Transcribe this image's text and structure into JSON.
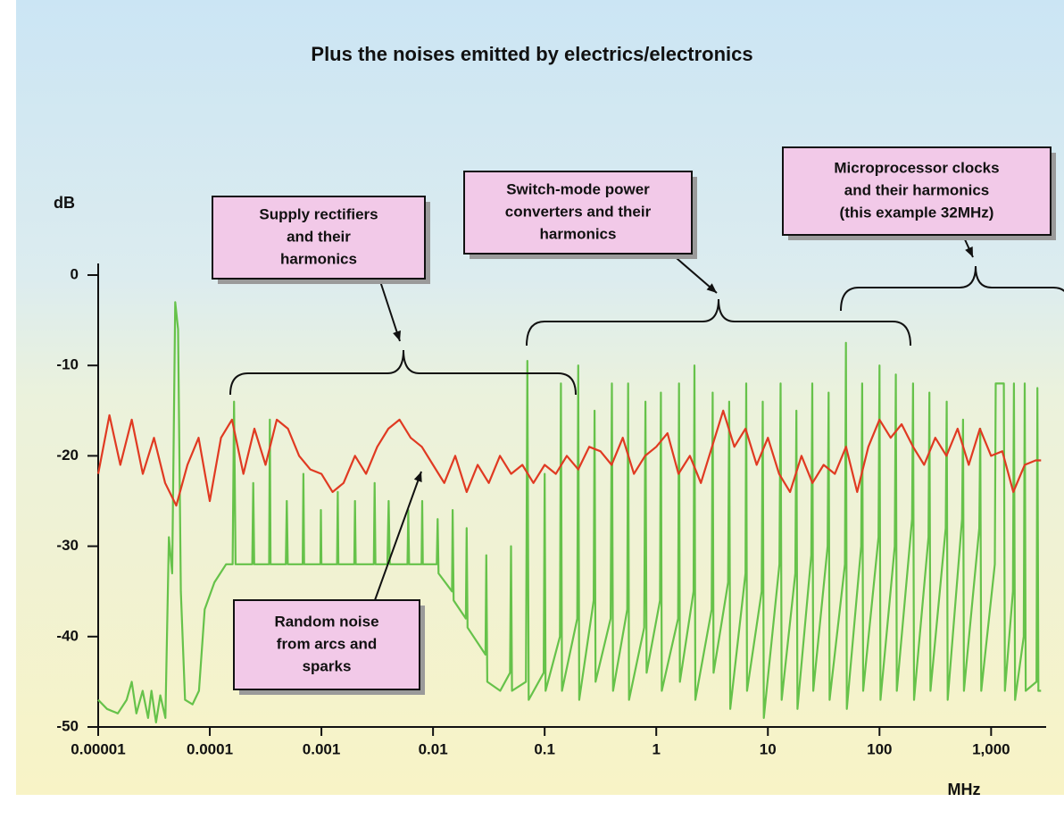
{
  "chart_data": {
    "type": "line",
    "title": "Plus the noises emitted by electrics/electronics",
    "ylabel": "dB",
    "xlabel": "MHz",
    "xscale": "log",
    "xlim": [
      1e-05,
      3000
    ],
    "ylim": [
      -50,
      0
    ],
    "xticks": [
      1e-05,
      0.0001,
      0.001,
      0.01,
      0.1,
      1,
      10,
      100,
      {
        "value": 1000,
        "label": "1,000"
      }
    ],
    "yticks": [
      0,
      -10,
      -20,
      -30,
      -40,
      -50
    ],
    "series": [
      {
        "color": "#66c24a",
        "x": [
          1e-05,
          1.2e-05,
          1.5e-05,
          1.8e-05,
          2e-05,
          2.2e-05,
          2.5e-05,
          2.8e-05,
          3e-05,
          3.3e-05,
          3.6e-05,
          4e-05,
          4.3e-05,
          4.6e-05,
          4.9e-05,
          5.2e-05,
          5.5e-05,
          6e-05,
          7e-05,
          8e-05,
          9e-05,
          0.00011,
          0.00014,
          0.00016,
          0.000165,
          0.00017,
          0.00024,
          0.000245,
          0.00025,
          0.00034,
          0.000345,
          0.00035,
          0.00048,
          0.00049,
          0.0005,
          0.00068,
          0.00069,
          0.0007,
          0.00098,
          0.00099,
          0.001,
          0.00138,
          0.0014,
          0.00142,
          0.00197,
          0.002,
          0.00203,
          0.00295,
          0.003,
          0.00305,
          0.0039,
          0.004,
          0.0041,
          0.0059,
          0.006,
          0.0061,
          0.0079,
          0.008,
          0.0081,
          0.0108,
          0.011,
          0.0112,
          0.0148,
          0.015,
          0.0153,
          0.0197,
          0.02,
          0.0204,
          0.0295,
          0.03,
          0.0306,
          0.04,
          0.049,
          0.05,
          0.051,
          0.068,
          0.07,
          0.072,
          0.098,
          0.1,
          0.102,
          0.137,
          0.14,
          0.143,
          0.196,
          0.2,
          0.204,
          0.275,
          0.28,
          0.286,
          0.39,
          0.4,
          0.41,
          0.55,
          0.56,
          0.57,
          0.78,
          0.8,
          0.82,
          1.08,
          1.1,
          1.12,
          1.57,
          1.6,
          1.63,
          2.16,
          2.2,
          2.24,
          3.14,
          3.2,
          3.26,
          4.4,
          4.5,
          4.6,
          6.3,
          6.4,
          6.5,
          8.8,
          9,
          9.2,
          12.7,
          13,
          13.3,
          17.6,
          18,
          18.4,
          24.5,
          25,
          25.5,
          34.3,
          35,
          35.7,
          49,
          50,
          51,
          68.6,
          70,
          71.4,
          98,
          100,
          102,
          137,
          140,
          143,
          196,
          200,
          204,
          275,
          280,
          286,
          392,
          400,
          408,
          549,
          560,
          571,
          784,
          800,
          816,
          1080,
          1100,
          1300,
          1330,
          1570,
          1600,
          1640,
          1960,
          2000,
          2040,
          2550,
          2600,
          2650,
          2800
        ],
        "values": [
          -47,
          -48,
          -48.5,
          -47,
          -45,
          -48.5,
          -46,
          -49,
          -46,
          -49.5,
          -46.5,
          -49,
          -29,
          -33,
          -3,
          -6,
          -35,
          -47,
          -47.5,
          -46,
          -37,
          -34,
          -32,
          -32,
          -14,
          -32,
          -32,
          -23,
          -32,
          -32,
          -16,
          -32,
          -32,
          -25,
          -32,
          -32,
          -22,
          -32,
          -32,
          -26,
          -32,
          -32,
          -24,
          -32,
          -32,
          -25,
          -32,
          -32,
          -23,
          -32,
          -32,
          -25,
          -32,
          -32,
          -26,
          -32,
          -32,
          -25,
          -32,
          -32,
          -27,
          -33,
          -35,
          -26,
          -36,
          -38,
          -28,
          -39,
          -42,
          -31,
          -45,
          -46,
          -44,
          -30,
          -46,
          -45,
          -9.5,
          -47,
          -44,
          -22,
          -46,
          -40,
          -12,
          -46,
          -38,
          -10,
          -47,
          -36,
          -15,
          -45,
          -38,
          -12,
          -46,
          -37,
          -12,
          -47,
          -39,
          -14,
          -44,
          -36,
          -13,
          -46,
          -38,
          -12,
          -45,
          -35,
          -10,
          -47,
          -37,
          -13,
          -44,
          -34,
          -14,
          -48,
          -33,
          -12,
          -46,
          -35,
          -14,
          -49,
          -32,
          -12,
          -47,
          -33,
          -15,
          -48,
          -31,
          -12,
          -46,
          -30,
          -13,
          -47,
          -32,
          -7.5,
          -48,
          -30,
          -12,
          -46,
          -29,
          -10,
          -47,
          -30,
          -11,
          -46,
          -27,
          -12,
          -47,
          -29,
          -13,
          -46,
          -28,
          -14,
          -47,
          -27,
          -16,
          -46,
          -28,
          -17,
          -46,
          -32,
          -12,
          -12,
          -46,
          -35,
          -12,
          -47,
          -40,
          -12,
          -46,
          -45,
          -12.5,
          -46,
          -46
        ]
      },
      {
        "color": "#e03a22",
        "x": [
          1e-05,
          1.26e-05,
          1.58e-05,
          2e-05,
          2.51e-05,
          3.16e-05,
          3.98e-05,
          5.01e-05,
          6.31e-05,
          7.94e-05,
          0.0001,
          0.000126,
          0.000158,
          0.0002,
          0.000251,
          0.000316,
          0.000398,
          0.000501,
          0.000631,
          0.000794,
          0.001,
          0.00126,
          0.00158,
          0.002,
          0.00251,
          0.00316,
          0.00398,
          0.00501,
          0.00631,
          0.00794,
          0.01,
          0.0126,
          0.0158,
          0.02,
          0.0251,
          0.0316,
          0.0398,
          0.0501,
          0.0631,
          0.0794,
          0.1,
          0.126,
          0.158,
          0.2,
          0.251,
          0.316,
          0.398,
          0.501,
          0.631,
          0.794,
          1,
          1.26,
          1.58,
          2,
          2.51,
          3.16,
          3.98,
          5.01,
          6.31,
          7.94,
          10,
          12.6,
          15.8,
          20,
          25.1,
          31.6,
          39.8,
          50.1,
          63.1,
          79.4,
          100,
          126,
          158,
          200,
          251,
          316,
          398,
          501,
          631,
          794,
          1000,
          1260,
          1580,
          2000,
          2510,
          2800
        ],
        "values": [
          -22,
          -15.5,
          -21,
          -16,
          -22,
          -18,
          -23,
          -25.5,
          -21,
          -18,
          -25,
          -18,
          -16,
          -22,
          -17,
          -21,
          -16,
          -17,
          -20,
          -21.5,
          -22,
          -24,
          -23,
          -20,
          -22,
          -19,
          -17,
          -16,
          -18,
          -19,
          -21,
          -23,
          -20,
          -24,
          -21,
          -23,
          -20,
          -22,
          -21,
          -23,
          -21,
          -22,
          -20,
          -21.5,
          -19,
          -19.5,
          -21,
          -18,
          -22,
          -20,
          -19,
          -17.5,
          -22,
          -20,
          -23,
          -19,
          -15,
          -19,
          -17,
          -21,
          -18,
          -22,
          -24,
          -20,
          -23,
          -21,
          -22,
          -19,
          -24,
          -19,
          -16,
          -18,
          -16.5,
          -19,
          -21,
          -18,
          -20,
          -17,
          -21,
          -17,
          -20,
          -19.5,
          -24,
          -21,
          -20.5,
          -20.5
        ]
      }
    ],
    "annotations": [
      {
        "lines": [
          "Supply rectifiers",
          "and their",
          "harmonics"
        ]
      },
      {
        "lines": [
          "Switch-mode power",
          "converters and their",
          "harmonics"
        ]
      },
      {
        "lines": [
          "Microprocessor clocks",
          "and their harmonics",
          "(this example 32MHz)"
        ]
      },
      {
        "lines": [
          "Random noise",
          "from arcs and",
          "sparks"
        ]
      }
    ]
  }
}
